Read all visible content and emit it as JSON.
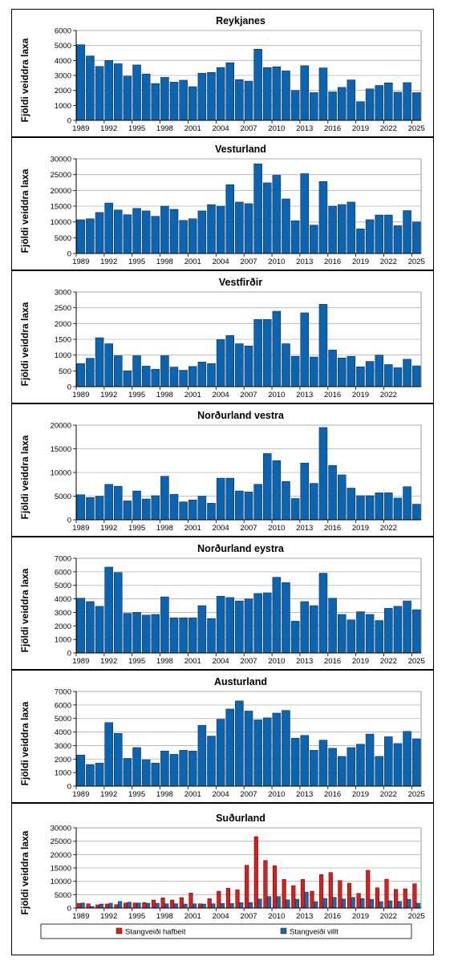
{
  "chart_data": [
    {
      "type": "bar",
      "title": "Reykjanes",
      "ylabel": "Fjöldi veiddra laxa",
      "ylim": [
        0,
        6000
      ],
      "yticks": [
        0,
        1000,
        2000,
        3000,
        4000,
        5000,
        6000
      ],
      "x": [
        1989,
        1990,
        1991,
        1992,
        1993,
        1994,
        1995,
        1996,
        1997,
        1998,
        1999,
        2000,
        2001,
        2002,
        2003,
        2004,
        2005,
        2006,
        2007,
        2008,
        2009,
        2010,
        2011,
        2012,
        2013,
        2014,
        2015,
        2016,
        2017,
        2018,
        2019,
        2020,
        2021,
        2022,
        2023,
        2024,
        2025
      ],
      "xticklabels": [
        "1989",
        "1992",
        "1995",
        "1998",
        "2001",
        "2004",
        "2007",
        "2010",
        "2013",
        "2016",
        "2019",
        "2022",
        "2025"
      ],
      "series": [
        {
          "color": "#0a64b4",
          "values": [
            5050,
            4300,
            3600,
            4000,
            3780,
            2950,
            3700,
            3100,
            2460,
            2870,
            2550,
            2680,
            2250,
            3150,
            3200,
            3530,
            3850,
            2720,
            2620,
            4750,
            3520,
            3580,
            3300,
            2000,
            3650,
            1850,
            3500,
            1900,
            2200,
            2700,
            1250,
            2100,
            2330,
            2500,
            1880,
            2520,
            1850
          ]
        }
      ]
    },
    {
      "type": "bar",
      "title": "Vesturland",
      "ylabel": "Fjöldi veiddra laxa",
      "ylim": [
        0,
        30000
      ],
      "yticks": [
        0,
        5000,
        10000,
        15000,
        20000,
        25000,
        30000
      ],
      "x": [
        1989,
        1990,
        1991,
        1992,
        1993,
        1994,
        1995,
        1996,
        1997,
        1998,
        1999,
        2000,
        2001,
        2002,
        2003,
        2004,
        2005,
        2006,
        2007,
        2008,
        2009,
        2010,
        2011,
        2012,
        2013,
        2014,
        2015,
        2016,
        2017,
        2018,
        2019,
        2020,
        2021,
        2022,
        2023,
        2024,
        2025
      ],
      "xticklabels": [
        "1989",
        "1992",
        "1995",
        "1998",
        "2001",
        "2004",
        "2007",
        "2010",
        "2013",
        "2016",
        "2019",
        "2022",
        "2025"
      ],
      "series": [
        {
          "color": "#0a64b4",
          "values": [
            10700,
            11000,
            13000,
            16000,
            13800,
            12300,
            14300,
            13500,
            11800,
            15000,
            14000,
            10500,
            11000,
            13500,
            15500,
            15000,
            21800,
            16300,
            15800,
            28400,
            22400,
            24800,
            17300,
            10400,
            25300,
            9000,
            22800,
            15000,
            15500,
            16300,
            7800,
            10700,
            12200,
            12200,
            8800,
            13600,
            10000
          ]
        }
      ]
    },
    {
      "type": "bar",
      "title": "Vestfirðir",
      "ylabel": "Fjöldi veiddra laxa",
      "ylim": [
        0,
        3000
      ],
      "yticks": [
        0,
        500,
        1000,
        1500,
        2000,
        2500,
        3000
      ],
      "x": [
        1989,
        1990,
        1991,
        1992,
        1993,
        1994,
        1995,
        1996,
        1997,
        1998,
        1999,
        2000,
        2001,
        2002,
        2003,
        2004,
        2005,
        2006,
        2007,
        2008,
        2009,
        2010,
        2011,
        2012,
        2013,
        2014,
        2015,
        2016,
        2017,
        2018,
        2019,
        2020,
        2021,
        2022,
        2023,
        2024,
        2025
      ],
      "xticklabels": [
        "1989",
        "1992",
        "1995",
        "1998",
        "2001",
        "2004",
        "2007",
        "2010",
        "2013",
        "2016",
        "2019",
        "2022"
      ],
      "series": [
        {
          "color": "#0a64b4",
          "values": [
            730,
            900,
            1550,
            1360,
            980,
            500,
            980,
            650,
            550,
            980,
            620,
            520,
            640,
            780,
            730,
            1490,
            1620,
            1360,
            1290,
            2130,
            2130,
            2390,
            1360,
            960,
            2340,
            940,
            2610,
            1160,
            910,
            960,
            630,
            800,
            1000,
            700,
            600,
            870,
            660
          ]
        }
      ]
    },
    {
      "type": "bar",
      "title": "Norðurland  vestra",
      "ylabel": "Fjöldi veiddra laxa",
      "ylim": [
        0,
        20000
      ],
      "yticks": [
        0,
        5000,
        10000,
        15000,
        20000
      ],
      "x": [
        1989,
        1990,
        1991,
        1992,
        1993,
        1994,
        1995,
        1996,
        1997,
        1998,
        1999,
        2000,
        2001,
        2002,
        2003,
        2004,
        2005,
        2006,
        2007,
        2008,
        2009,
        2010,
        2011,
        2012,
        2013,
        2014,
        2015,
        2016,
        2017,
        2018,
        2019,
        2020,
        2021,
        2022,
        2023,
        2024,
        2025
      ],
      "xticklabels": [
        "1989",
        "1992",
        "1995",
        "1998",
        "2001",
        "2004",
        "2007",
        "2010",
        "2013",
        "2016",
        "2019",
        "2022"
      ],
      "series": [
        {
          "color": "#0a64b4",
          "values": [
            5300,
            4700,
            5000,
            7500,
            7100,
            4000,
            6100,
            4400,
            5100,
            9200,
            5400,
            3800,
            4200,
            5000,
            3500,
            8800,
            8800,
            6100,
            5900,
            7500,
            14000,
            12500,
            8100,
            4500,
            12000,
            7700,
            19500,
            11500,
            9500,
            6700,
            5100,
            5100,
            5700,
            5700,
            4600,
            7000,
            3300
          ]
        }
      ]
    },
    {
      "type": "bar",
      "title": "Norðurland  eystra",
      "ylabel": "Fjöldi veiddra laxa",
      "ylim": [
        0,
        7000
      ],
      "yticks": [
        0,
        1000,
        2000,
        3000,
        4000,
        5000,
        6000,
        7000
      ],
      "x": [
        1989,
        1990,
        1991,
        1992,
        1993,
        1994,
        1995,
        1996,
        1997,
        1998,
        1999,
        2000,
        2001,
        2002,
        2003,
        2004,
        2005,
        2006,
        2007,
        2008,
        2009,
        2010,
        2011,
        2012,
        2013,
        2014,
        2015,
        2016,
        2017,
        2018,
        2019,
        2020,
        2021,
        2022,
        2023,
        2024,
        2025
      ],
      "xticklabels": [
        "1989",
        "1992",
        "1995",
        "1998",
        "2001",
        "2004",
        "2007",
        "2010",
        "2013",
        "2016",
        "2019",
        "2022",
        "2025"
      ],
      "series": [
        {
          "color": "#0a64b4",
          "values": [
            4050,
            3800,
            3450,
            6350,
            5950,
            2930,
            3000,
            2800,
            2850,
            4150,
            2600,
            2600,
            2600,
            3500,
            2550,
            4200,
            4100,
            3850,
            4000,
            4400,
            4450,
            5600,
            5200,
            2350,
            3800,
            3500,
            5900,
            4050,
            2850,
            2450,
            3050,
            2850,
            2400,
            3300,
            3450,
            3850,
            3200
          ]
        }
      ]
    },
    {
      "type": "bar",
      "title": "Austurland",
      "ylabel": "Fjöldi veiddra laxa",
      "ylim": [
        0,
        7000
      ],
      "yticks": [
        0,
        1000,
        2000,
        3000,
        4000,
        5000,
        6000,
        7000
      ],
      "x": [
        1989,
        1990,
        1991,
        1992,
        1993,
        1994,
        1995,
        1996,
        1997,
        1998,
        1999,
        2000,
        2001,
        2002,
        2003,
        2004,
        2005,
        2006,
        2007,
        2008,
        2009,
        2010,
        2011,
        2012,
        2013,
        2014,
        2015,
        2016,
        2017,
        2018,
        2019,
        2020,
        2021,
        2022,
        2023,
        2024,
        2025
      ],
      "xticklabels": [
        "1989",
        "1992",
        "1995",
        "1998",
        "2001",
        "2004",
        "2007",
        "2010",
        "2013",
        "2016",
        "2019",
        "2022",
        "2025"
      ],
      "series": [
        {
          "color": "#0a64b4",
          "values": [
            2300,
            1600,
            1700,
            4700,
            3900,
            2050,
            2850,
            1950,
            1700,
            2600,
            2350,
            2650,
            2600,
            4500,
            3700,
            4950,
            5700,
            6300,
            5550,
            4900,
            5050,
            5400,
            5600,
            3550,
            3750,
            2650,
            3400,
            2800,
            2200,
            2850,
            3100,
            3850,
            2200,
            3650,
            3150,
            4050,
            3500
          ]
        }
      ]
    },
    {
      "type": "bar",
      "title": "Suðurland",
      "ylabel": "Fjöldi veiddra laxa",
      "ylim": [
        0,
        30000
      ],
      "yticks": [
        0,
        5000,
        10000,
        15000,
        20000,
        25000,
        30000
      ],
      "x": [
        1989,
        1990,
        1991,
        1992,
        1993,
        1994,
        1995,
        1996,
        1997,
        1998,
        1999,
        2000,
        2001,
        2002,
        2003,
        2004,
        2005,
        2006,
        2007,
        2008,
        2009,
        2010,
        2011,
        2012,
        2013,
        2014,
        2015,
        2016,
        2017,
        2018,
        2019,
        2020,
        2021,
        2022,
        2023,
        2024,
        2025
      ],
      "xticklabels": [
        "1989",
        "1992",
        "1995",
        "1998",
        "2001",
        "2004",
        "2007",
        "2010",
        "2013",
        "2016",
        "2019",
        "2022",
        "2025"
      ],
      "legend": "bottom",
      "series": [
        {
          "name": "Stangveiði hafbeit",
          "color": "#e21a1a",
          "values": [
            1700,
            1600,
            1200,
            1500,
            1300,
            1900,
            1900,
            2000,
            3000,
            3800,
            3000,
            3900,
            5600,
            1600,
            3500,
            6300,
            7400,
            6800,
            16000,
            26700,
            17800,
            15800,
            10700,
            8400,
            10700,
            6300,
            12500,
            13300,
            10300,
            9300,
            5500,
            14100,
            7600,
            10800,
            7000,
            7200,
            9100
          ]
        },
        {
          "name": "Stangveiði villt",
          "color": "#1a6aa8",
          "values": [
            1900,
            600,
            1500,
            1800,
            2500,
            2200,
            1900,
            1800,
            1800,
            1600,
            1600,
            1500,
            1600,
            1500,
            1600,
            1700,
            1700,
            2000,
            2100,
            3400,
            4300,
            4300,
            3100,
            3300,
            6000,
            2400,
            3600,
            4000,
            3400,
            4000,
            3600,
            3300,
            2400,
            2700,
            2500,
            3300,
            1800
          ]
        }
      ]
    }
  ]
}
